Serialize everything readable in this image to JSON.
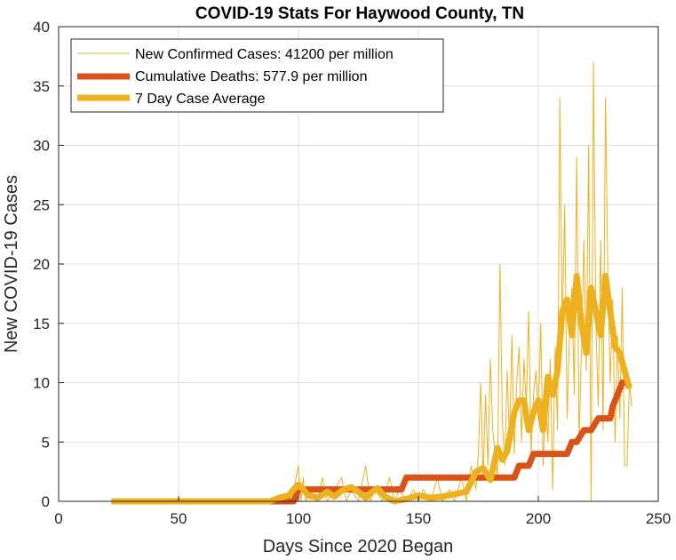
{
  "chart_data": {
    "type": "line",
    "title": "COVID-19 Stats For Haywood County, TN",
    "xlabel": "Days Since 2020 Began",
    "ylabel": "New COVID-19 Cases",
    "xlim": [
      0,
      250
    ],
    "ylim": [
      0,
      40
    ],
    "xticks": [
      0,
      50,
      100,
      150,
      200,
      250
    ],
    "yticks": [
      0,
      5,
      10,
      15,
      20,
      25,
      30,
      35,
      40
    ],
    "grid": true,
    "legend_position": "top-left",
    "series": [
      {
        "name": "New Confirmed Cases: 41200 per million",
        "color": "#edb120",
        "style": "thin",
        "x": [
          22,
          85,
          90,
          95,
          98,
          100,
          101,
          102,
          103,
          105,
          108,
          110,
          112,
          115,
          118,
          120,
          122,
          125,
          128,
          130,
          132,
          135,
          138,
          140,
          142,
          145,
          148,
          150,
          152,
          155,
          158,
          160,
          163,
          165,
          168,
          170,
          172,
          174,
          175,
          176,
          177,
          178,
          179,
          180,
          181,
          182,
          183,
          184,
          185,
          186,
          187,
          188,
          189,
          190,
          191,
          192,
          193,
          194,
          195,
          196,
          197,
          198,
          199,
          200,
          201,
          202,
          203,
          204,
          205,
          206,
          207,
          208,
          209,
          210,
          211,
          212,
          213,
          214,
          215,
          216,
          217,
          218,
          219,
          220,
          221,
          222,
          223,
          224,
          225,
          226,
          227,
          228,
          229,
          230,
          231,
          232,
          233,
          234,
          235,
          236,
          237,
          238,
          239
        ],
        "y": [
          0,
          0,
          0,
          0,
          1,
          3,
          0,
          2,
          0,
          1,
          0,
          2,
          0,
          1,
          2,
          0,
          1,
          0,
          3,
          0,
          1,
          0,
          2,
          0,
          1,
          0,
          1,
          0,
          1,
          0,
          2,
          0,
          1,
          0,
          2,
          0,
          3,
          1,
          4,
          10,
          2,
          9,
          3,
          12,
          6,
          4,
          2,
          20,
          7,
          3,
          11,
          5,
          14,
          4,
          10,
          13,
          5,
          12,
          8,
          16,
          4,
          9,
          11,
          7,
          15,
          3,
          9,
          5,
          12,
          1,
          13,
          6,
          34,
          14,
          25,
          7,
          14,
          18,
          9,
          29,
          5,
          13,
          22,
          11,
          30,
          0,
          37,
          15,
          8,
          22,
          6,
          34,
          19,
          10,
          17,
          5,
          14,
          7,
          18,
          3,
          3,
          10,
          8
        ]
      },
      {
        "name": "Cumulative Deaths: 577.9 per million",
        "color": "#d95319",
        "style": "thick",
        "x": [
          22,
          90,
          92,
          94,
          96,
          98,
          100,
          143,
          145,
          180,
          182,
          190,
          192,
          196,
          198,
          210,
          212,
          214,
          216,
          219,
          221,
          222,
          225,
          228,
          230,
          231,
          233,
          235,
          238
        ],
        "y": [
          0,
          0,
          0,
          0,
          0,
          0,
          1,
          1,
          2,
          2,
          2,
          2,
          3,
          3,
          4,
          4,
          4,
          5,
          5,
          6,
          6,
          6,
          7,
          7,
          7,
          8,
          9,
          10,
          10
        ]
      },
      {
        "name": "7 Day Case Average",
        "color": "#edb120",
        "style": "thick",
        "x": [
          22,
          88,
          92,
          96,
          98,
          100,
          102,
          104,
          108,
          112,
          115,
          118,
          122,
          125,
          128,
          130,
          133,
          136,
          140,
          145,
          150,
          155,
          160,
          165,
          170,
          174,
          177,
          180,
          183,
          185,
          187,
          190,
          192,
          194,
          196,
          198,
          200,
          202,
          204,
          206,
          208,
          210,
          212,
          214,
          216,
          218,
          220,
          222,
          224,
          226,
          228,
          230,
          232,
          234,
          236,
          238
        ],
        "y": [
          0,
          0,
          0.3,
          0.5,
          1,
          1.4,
          1,
          0.5,
          0.3,
          0.8,
          0.4,
          0.9,
          1.2,
          0.8,
          0.3,
          0.7,
          1.1,
          0.4,
          0,
          0.2,
          0.5,
          0.3,
          0.4,
          0.6,
          0.8,
          2.5,
          2.8,
          1.8,
          4.5,
          3.5,
          4.2,
          7.5,
          8.5,
          8.5,
          6,
          7.5,
          8.5,
          6,
          10.5,
          9,
          11,
          16,
          17,
          14,
          19,
          15,
          12.5,
          18,
          16,
          14,
          19,
          16,
          13,
          12.5,
          11,
          9.5
        ]
      }
    ]
  }
}
